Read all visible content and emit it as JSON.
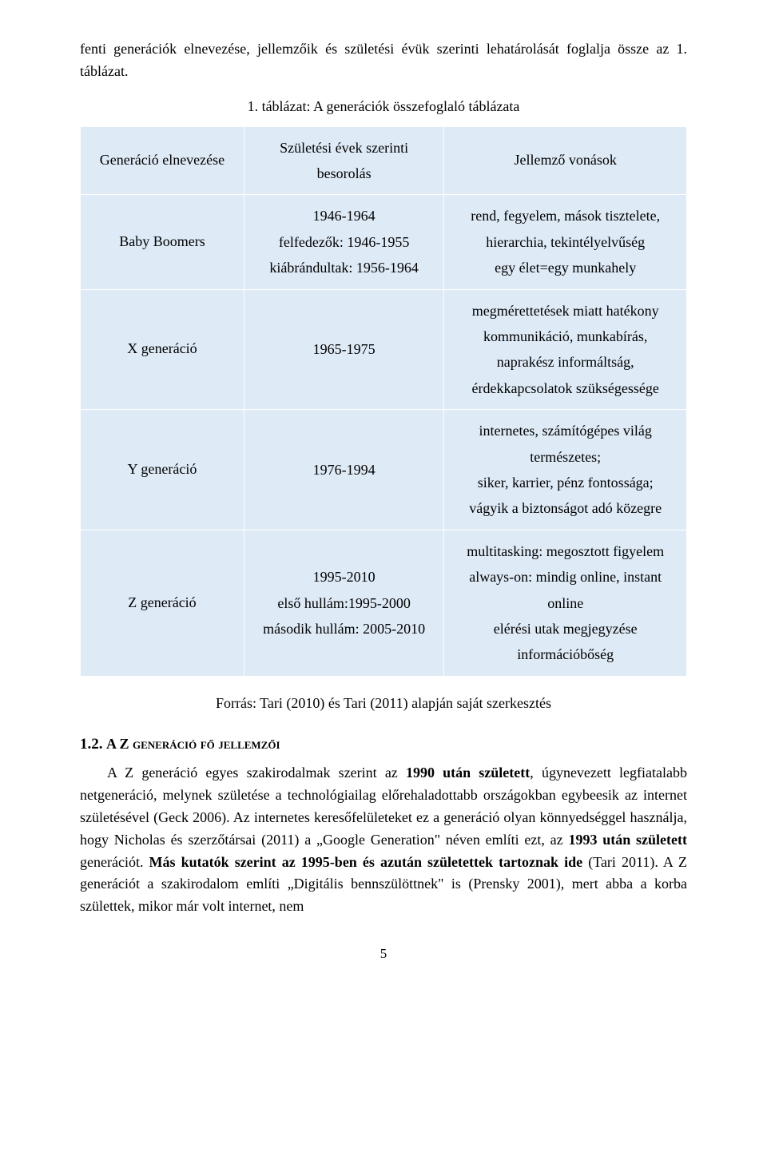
{
  "top_paragraph": "fenti generációk elnevezése, jellemzőik és születési évük szerinti lehatárolását foglalja össze az 1. táblázat.",
  "table_caption": "1. táblázat: A generációk összefoglaló táblázata",
  "table": {
    "columns": [
      "Generáció elnevezése",
      "Születési évek szerinti besorolás",
      "Jellemző vonások"
    ],
    "rows": [
      {
        "name": "Baby Boomers",
        "years": [
          "1946-1964",
          "felfedezők: 1946-1955",
          "kiábrándultak: 1956-1964"
        ],
        "traits": [
          "rend, fegyelem, mások tisztelete,",
          "hierarchia, tekintélyelvűség",
          "egy élet=egy munkahely"
        ]
      },
      {
        "name": "X generáció",
        "years": [
          "1965-1975"
        ],
        "traits": [
          "megmérettetések miatt hatékony",
          "kommunikáció, munkabírás,",
          "naprakész informáltság,",
          "érdekkapcsolatok szükségessége"
        ]
      },
      {
        "name": "Y generáció",
        "years": [
          "1976-1994"
        ],
        "traits": [
          "internetes, számítógépes világ",
          "természetes;",
          "siker, karrier, pénz fontossága;",
          "vágyik a biztonságot adó közegre"
        ]
      },
      {
        "name": "Z generáció",
        "years": [
          "1995-2010",
          "első hullám:1995-2000",
          "második hullám: 2005-2010"
        ],
        "traits": [
          "multitasking: megosztott figyelem",
          "always-on: mindig online, instant",
          "online",
          "elérési utak megjegyzése",
          "információbőség"
        ]
      }
    ],
    "background_color": "#deeaf6",
    "border_color": "#ffffff"
  },
  "source_line": "Forrás: Tari (2010) és Tari (2011) alapján saját szerkesztés",
  "heading_number": "1.2.",
  "heading_text": "A Z generáció fő jellemzői",
  "body_html_parts": {
    "p1a": "A Z generáció egyes szakirodalmak szerint az ",
    "p1b_bold": "1990 után született",
    "p1c": ", úgynevezett legfiatalabb netgeneráció, melynek születése a technológiailag előrehaladottabb országokban egybeesik az internet születésével (Geck 2006). Az internetes keresőfelületeket ez a generáció olyan könnyedséggel használja, hogy Nicholas és szerzőtársai (2011) a „Google Generation\" néven említi ezt, az ",
    "p1d_bold": "1993 után született",
    "p1e": " generációt. ",
    "p1f_bold": "Más kutatók szerint az 1995-ben és azután születettek tartoznak ide",
    "p1g": " (Tari 2011). A Z generációt a szakirodalom említi „Digitális bennszülöttnek\" is (Prensky 2001), mert abba a korba születtek, mikor már volt internet, nem"
  },
  "page_number": "5"
}
